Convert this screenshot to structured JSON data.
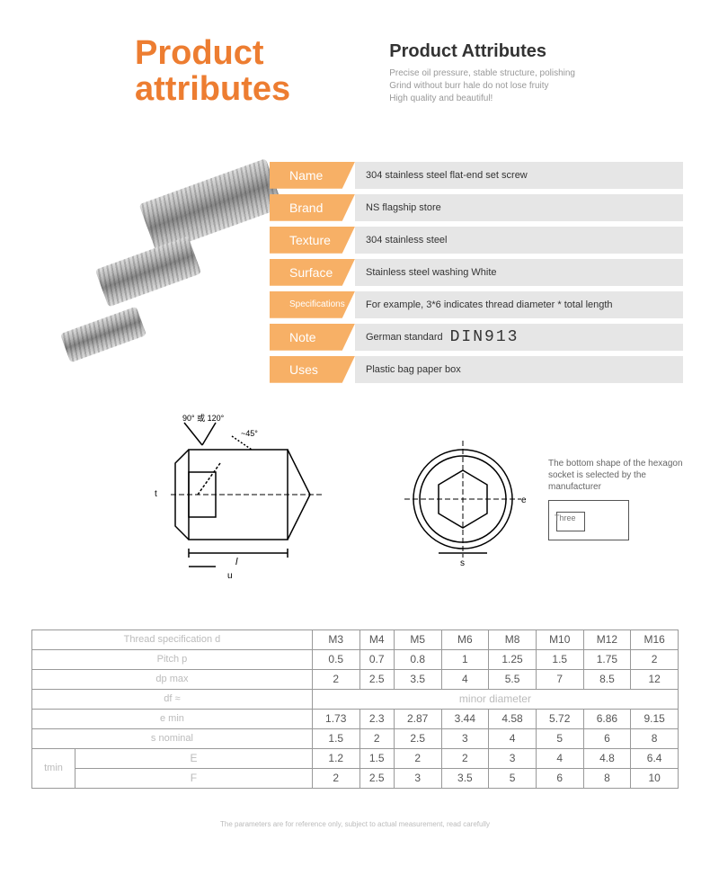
{
  "header": {
    "left_line1": "Product",
    "left_line2": "attributes",
    "right_title": "Product Attributes",
    "right_sub1": "Precise oil pressure, stable structure, polishing",
    "right_sub2": "Grind without burr hale do not lose fruity",
    "right_sub3": "High quality and beautiful!",
    "accent_color": "#ed7d31"
  },
  "attrs": {
    "label_bg": "#f7b066",
    "value_bg": "#e6e6e6",
    "rows": [
      {
        "label": "Name",
        "value": "304 stainless steel flat-end set screw"
      },
      {
        "label": "Brand",
        "value": "NS flagship store"
      },
      {
        "label": "Texture",
        "value": "304 stainless steel"
      },
      {
        "label": "Surface",
        "value": "Stainless steel washing White"
      },
      {
        "label": "Specifications",
        "value": "For example, 3*6 indicates thread diameter * total length"
      },
      {
        "label": "Note",
        "value": "German standard",
        "extra": "DIN913"
      },
      {
        "label": "Uses",
        "value": "Plastic bag paper box"
      }
    ]
  },
  "diagram": {
    "side_angles": [
      "90° or 120°",
      "~45°"
    ],
    "note_line1": "The bottom shape of the hexagon",
    "note_line2": "socket is selected by the manufacturer",
    "mini_label": "Three"
  },
  "spec": {
    "columns": [
      "M3",
      "M4",
      "M5",
      "M6",
      "M8",
      "M10",
      "M12",
      "M16"
    ],
    "rows": [
      {
        "label": "Thread specification d",
        "cells": [
          "M3",
          "M4",
          "M5",
          "M6",
          "M8",
          "M10",
          "M12",
          "M16"
        ],
        "is_header": true
      },
      {
        "label": "Pitch p",
        "cells": [
          "0.5",
          "0.7",
          "0.8",
          "1",
          "1.25",
          "1.5",
          "1.75",
          "2"
        ]
      },
      {
        "label": "dp   max",
        "cells": [
          "2",
          "2.5",
          "3.5",
          "4",
          "5.5",
          "7",
          "8.5",
          "12"
        ]
      },
      {
        "label": "df    ≈",
        "span_text": "minor diameter"
      },
      {
        "label": "e min",
        "cells": [
          "1.73",
          "2.3",
          "2.87",
          "3.44",
          "4.58",
          "5.72",
          "6.86",
          "9.15"
        ]
      },
      {
        "label": "s nominal",
        "cells": [
          "1.5",
          "2",
          "2.5",
          "3",
          "4",
          "5",
          "6",
          "8"
        ]
      }
    ],
    "tmin": {
      "label": "tmin",
      "E": [
        "1.2",
        "1.5",
        "2",
        "2",
        "3",
        "4",
        "4.8",
        "6.4"
      ],
      "F": [
        "2",
        "2.5",
        "3",
        "3.5",
        "5",
        "6",
        "8",
        "10"
      ]
    }
  },
  "footnote": "The parameters are for reference only, subject to actual measurement, read carefully"
}
